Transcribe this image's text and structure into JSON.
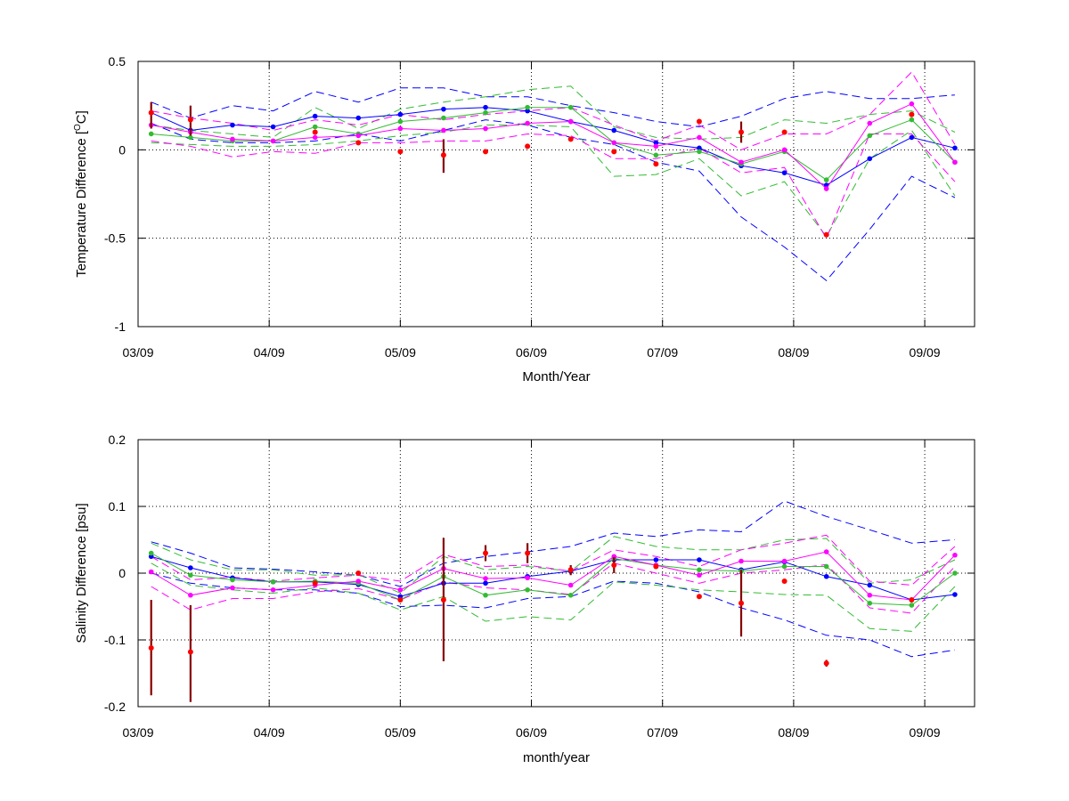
{
  "chart_data": [
    {
      "type": "line",
      "xlabel": "Month/Year",
      "ylabel": "Temperature Difference [",
      "ylabel_sup": "O",
      "ylabel_unit": "C]",
      "xlim": [
        0.0,
        6.38
      ],
      "ylim": [
        -1,
        0.5
      ],
      "x_ticks": [
        0,
        1,
        2,
        3,
        4,
        5,
        6
      ],
      "x_tick_labels": [
        "03/09",
        "04/09",
        "05/09",
        "06/09",
        "07/09",
        "08/09",
        "09/09"
      ],
      "y_ticks": [
        0.5,
        0,
        -0.5,
        -1
      ],
      "y_tick_labels": [
        "0.5",
        "0",
        "-0.5",
        "-1"
      ],
      "grid": true,
      "series": [
        {
          "color": "#0000ff",
          "style": "solid",
          "marker": true,
          "x": [
            0.1,
            0.4,
            0.72,
            1.03,
            1.35,
            1.68,
            2.0,
            2.33,
            2.65,
            2.97,
            3.3,
            3.63,
            3.95,
            4.28,
            4.6,
            4.93,
            5.25,
            5.58,
            5.9,
            6.23
          ],
          "y": [
            0.21,
            0.11,
            0.14,
            0.13,
            0.19,
            0.18,
            0.2,
            0.23,
            0.24,
            0.22,
            0.16,
            0.11,
            0.04,
            0.01,
            -0.09,
            -0.13,
            -0.2,
            -0.05,
            0.07,
            0.01
          ]
        },
        {
          "color": "#0000ff",
          "style": "dashed",
          "marker": false,
          "x": [
            0.1,
            0.4,
            0.72,
            1.03,
            1.35,
            1.68,
            2.0,
            2.33,
            2.65,
            2.97,
            3.3,
            3.63,
            3.95,
            4.28,
            4.6,
            4.93,
            5.25,
            5.58,
            5.9,
            6.23
          ],
          "y": [
            0.27,
            0.18,
            0.25,
            0.22,
            0.33,
            0.27,
            0.35,
            0.35,
            0.3,
            0.3,
            0.25,
            0.21,
            0.16,
            0.13,
            0.19,
            0.29,
            0.33,
            0.29,
            0.29,
            0.31
          ]
        },
        {
          "color": "#0000ff",
          "style": "dashed",
          "marker": false,
          "x": [
            0.1,
            0.4,
            0.72,
            1.03,
            1.35,
            1.68,
            2.0,
            2.33,
            2.65,
            2.97,
            3.3,
            3.63,
            3.95,
            4.28,
            4.6,
            4.93,
            5.25,
            5.58,
            5.9,
            6.23
          ],
          "y": [
            0.15,
            0.06,
            0.04,
            0.04,
            0.05,
            0.09,
            0.05,
            0.11,
            0.17,
            0.14,
            0.07,
            0.03,
            -0.07,
            -0.12,
            -0.38,
            -0.55,
            -0.74,
            -0.45,
            -0.15,
            -0.27
          ]
        },
        {
          "color": "#33bb33",
          "style": "solid",
          "marker": true,
          "x": [
            0.1,
            0.4,
            0.72,
            1.03,
            1.35,
            1.68,
            2.0,
            2.33,
            2.65,
            2.97,
            3.3,
            3.63,
            3.95,
            4.28,
            4.6,
            4.93,
            5.25,
            5.58,
            5.9,
            6.23
          ],
          "y": [
            0.09,
            0.07,
            0.05,
            0.05,
            0.13,
            0.09,
            0.16,
            0.18,
            0.21,
            0.24,
            0.24,
            0.04,
            -0.03,
            -0.01,
            -0.08,
            -0.01,
            -0.17,
            0.08,
            0.17,
            -0.07
          ]
        },
        {
          "color": "#33bb33",
          "style": "dashed",
          "marker": false,
          "x": [
            0.1,
            0.4,
            0.72,
            1.03,
            1.35,
            1.68,
            2.0,
            2.33,
            2.65,
            2.97,
            3.3,
            3.63,
            3.95,
            4.28,
            4.6,
            4.93,
            5.25,
            5.58,
            5.9,
            6.23
          ],
          "y": [
            0.14,
            0.11,
            0.09,
            0.07,
            0.24,
            0.12,
            0.23,
            0.27,
            0.3,
            0.34,
            0.36,
            0.13,
            0.07,
            0.06,
            0.07,
            0.17,
            0.15,
            0.2,
            0.22,
            0.1
          ]
        },
        {
          "color": "#33bb33",
          "style": "dashed",
          "marker": false,
          "x": [
            0.1,
            0.4,
            0.72,
            1.03,
            1.35,
            1.68,
            2.0,
            2.33,
            2.65,
            2.97,
            3.3,
            3.63,
            3.95,
            4.28,
            4.6,
            4.93,
            5.25,
            5.58,
            5.9,
            6.23
          ],
          "y": [
            0.04,
            0.03,
            0.02,
            0.02,
            0.03,
            0.05,
            0.08,
            0.1,
            0.14,
            0.14,
            0.13,
            -0.15,
            -0.14,
            -0.05,
            -0.26,
            -0.18,
            -0.49,
            -0.05,
            0.11,
            -0.26
          ]
        },
        {
          "color": "#ff00ff",
          "style": "solid",
          "marker": true,
          "x": [
            0.1,
            0.4,
            0.72,
            1.03,
            1.35,
            1.68,
            2.0,
            2.33,
            2.65,
            2.97,
            3.3,
            3.63,
            3.95,
            4.28,
            4.6,
            4.93,
            5.25,
            5.58,
            5.9,
            6.23
          ],
          "y": [
            0.14,
            0.1,
            0.06,
            0.05,
            0.07,
            0.08,
            0.12,
            0.11,
            0.12,
            0.15,
            0.16,
            0.04,
            0.02,
            0.07,
            -0.07,
            0.0,
            -0.22,
            0.15,
            0.26,
            -0.07
          ]
        },
        {
          "color": "#ff00ff",
          "style": "dashed",
          "marker": false,
          "x": [
            0.1,
            0.4,
            0.72,
            1.03,
            1.35,
            1.68,
            2.0,
            2.33,
            2.65,
            2.97,
            3.3,
            3.63,
            3.95,
            4.28,
            4.6,
            4.93,
            5.25,
            5.58,
            5.9,
            6.23
          ],
          "y": [
            0.22,
            0.18,
            0.15,
            0.11,
            0.17,
            0.14,
            0.2,
            0.17,
            0.2,
            0.22,
            0.24,
            0.14,
            0.05,
            0.14,
            0.0,
            0.09,
            0.09,
            0.2,
            0.44,
            0.03
          ]
        },
        {
          "color": "#ff00ff",
          "style": "dashed",
          "marker": false,
          "x": [
            0.1,
            0.4,
            0.72,
            1.03,
            1.35,
            1.68,
            2.0,
            2.33,
            2.65,
            2.97,
            3.3,
            3.63,
            3.95,
            4.28,
            4.6,
            4.93,
            5.25,
            5.58,
            5.9,
            6.23
          ],
          "y": [
            0.05,
            0.02,
            -0.04,
            -0.01,
            -0.02,
            0.04,
            0.04,
            0.05,
            0.05,
            0.09,
            0.08,
            -0.05,
            -0.05,
            0.01,
            -0.13,
            -0.1,
            -0.5,
            0.09,
            0.09,
            -0.18
          ]
        }
      ],
      "points": {
        "color": "#ff0000",
        "x": [
          0.1,
          0.4,
          1.35,
          1.68,
          2.0,
          2.33,
          2.65,
          2.97,
          3.3,
          3.63,
          3.95,
          4.28,
          4.6,
          4.93,
          5.25,
          5.9
        ],
        "y": [
          0.21,
          0.17,
          0.1,
          0.04,
          -0.01,
          -0.03,
          -0.01,
          0.02,
          0.06,
          -0.01,
          -0.08,
          0.16,
          0.1,
          0.1,
          -0.48,
          0.2
        ]
      },
      "error_bars": {
        "color": "#880000",
        "x": [
          0.1,
          0.4,
          2.33,
          4.6
        ],
        "low": [
          0.12,
          0.08,
          -0.13,
          0.04
        ],
        "high": [
          0.27,
          0.25,
          0.06,
          0.16
        ]
      }
    },
    {
      "type": "line",
      "xlabel": "month/year",
      "ylabel": "Salinity Difference [psu]",
      "xlim": [
        0.0,
        6.38
      ],
      "ylim": [
        -0.2,
        0.2
      ],
      "x_ticks": [
        0,
        1,
        2,
        3,
        4,
        5,
        6
      ],
      "x_tick_labels": [
        "03/09",
        "04/09",
        "05/09",
        "06/09",
        "07/09",
        "08/09",
        "09/09"
      ],
      "y_ticks": [
        0.2,
        0.1,
        0,
        -0.1,
        -0.2
      ],
      "y_tick_labels": [
        "0.2",
        "0.1",
        "0",
        "-0.1",
        "-0.2"
      ],
      "grid": true,
      "series": [
        {
          "color": "#0000ff",
          "style": "solid",
          "marker": true,
          "x": [
            0.1,
            0.4,
            0.72,
            1.03,
            1.35,
            1.68,
            2.0,
            2.33,
            2.65,
            2.97,
            3.3,
            3.63,
            3.95,
            4.28,
            4.6,
            4.93,
            5.25,
            5.58,
            5.9,
            6.23
          ],
          "y": [
            0.025,
            0.008,
            -0.007,
            -0.013,
            -0.013,
            -0.017,
            -0.035,
            -0.015,
            -0.015,
            -0.005,
            0.003,
            0.02,
            0.02,
            0.02,
            0.005,
            0.017,
            -0.005,
            -0.018,
            -0.04,
            -0.032
          ]
        },
        {
          "color": "#0000ff",
          "style": "dashed",
          "marker": false,
          "x": [
            0.1,
            0.4,
            0.72,
            1.03,
            1.35,
            1.68,
            2.0,
            2.33,
            2.65,
            2.97,
            3.3,
            3.63,
            3.95,
            4.28,
            4.6,
            4.93,
            5.25,
            5.58,
            5.9,
            6.23
          ],
          "y": [
            0.047,
            0.03,
            0.008,
            0.006,
            0.002,
            -0.003,
            -0.02,
            0.015,
            0.025,
            0.032,
            0.04,
            0.06,
            0.055,
            0.065,
            0.062,
            0.108,
            0.085,
            0.065,
            0.045,
            0.05
          ]
        },
        {
          "color": "#0000ff",
          "style": "dashed",
          "marker": false,
          "x": [
            0.1,
            0.4,
            0.72,
            1.03,
            1.35,
            1.68,
            2.0,
            2.33,
            2.65,
            2.97,
            3.3,
            3.63,
            3.95,
            4.28,
            4.6,
            4.93,
            5.25,
            5.58,
            5.9,
            6.23
          ],
          "y": [
            0.0,
            -0.015,
            -0.022,
            -0.025,
            -0.025,
            -0.03,
            -0.05,
            -0.048,
            -0.052,
            -0.038,
            -0.035,
            -0.012,
            -0.015,
            -0.028,
            -0.052,
            -0.07,
            -0.093,
            -0.1,
            -0.125,
            -0.115
          ]
        },
        {
          "color": "#33bb33",
          "style": "solid",
          "marker": true,
          "x": [
            0.1,
            0.4,
            0.72,
            1.03,
            1.35,
            1.68,
            2.0,
            2.33,
            2.65,
            2.97,
            3.3,
            3.63,
            3.95,
            4.28,
            4.6,
            4.93,
            5.25,
            5.58,
            5.9,
            6.23
          ],
          "y": [
            0.03,
            -0.003,
            -0.01,
            -0.013,
            -0.012,
            -0.015,
            -0.04,
            -0.005,
            -0.033,
            -0.025,
            -0.033,
            0.022,
            0.012,
            0.005,
            0.003,
            0.01,
            0.01,
            -0.045,
            -0.048,
            0.0
          ]
        },
        {
          "color": "#33bb33",
          "style": "dashed",
          "marker": false,
          "x": [
            0.1,
            0.4,
            0.72,
            1.03,
            1.35,
            1.68,
            2.0,
            2.33,
            2.65,
            2.97,
            3.3,
            3.63,
            3.95,
            4.28,
            4.6,
            4.93,
            5.25,
            5.58,
            5.9,
            6.23
          ],
          "y": [
            0.045,
            0.02,
            0.005,
            0.005,
            -0.003,
            -0.002,
            -0.03,
            0.025,
            0.005,
            0.01,
            0.003,
            0.055,
            0.04,
            0.035,
            0.035,
            0.05,
            0.052,
            -0.015,
            -0.01,
            0.02
          ]
        },
        {
          "color": "#33bb33",
          "style": "dashed",
          "marker": false,
          "x": [
            0.1,
            0.4,
            0.72,
            1.03,
            1.35,
            1.68,
            2.0,
            2.33,
            2.65,
            2.97,
            3.3,
            3.63,
            3.95,
            4.28,
            4.6,
            4.93,
            5.25,
            5.58,
            5.9,
            6.23
          ],
          "y": [
            0.015,
            -0.018,
            -0.025,
            -0.03,
            -0.022,
            -0.03,
            -0.055,
            -0.035,
            -0.072,
            -0.065,
            -0.07,
            -0.013,
            -0.018,
            -0.025,
            -0.028,
            -0.032,
            -0.033,
            -0.083,
            -0.087,
            -0.02
          ]
        },
        {
          "color": "#ff00ff",
          "style": "solid",
          "marker": true,
          "x": [
            0.1,
            0.4,
            0.72,
            1.03,
            1.35,
            1.68,
            2.0,
            2.33,
            2.65,
            2.97,
            3.3,
            3.63,
            3.95,
            4.28,
            4.6,
            4.93,
            5.25,
            5.58,
            5.9,
            6.23
          ],
          "y": [
            0.002,
            -0.033,
            -0.022,
            -0.025,
            -0.018,
            -0.012,
            -0.025,
            0.007,
            -0.008,
            -0.007,
            -0.018,
            0.025,
            0.012,
            -0.003,
            0.018,
            0.018,
            0.032,
            -0.033,
            -0.04,
            0.027
          ]
        },
        {
          "color": "#ff00ff",
          "style": "dashed",
          "marker": false,
          "x": [
            0.1,
            0.4,
            0.72,
            1.03,
            1.35,
            1.68,
            2.0,
            2.33,
            2.65,
            2.97,
            3.3,
            3.63,
            3.95,
            4.28,
            4.6,
            4.93,
            5.25,
            5.58,
            5.9,
            6.23
          ],
          "y": [
            0.025,
            -0.01,
            -0.006,
            -0.012,
            -0.007,
            -0.003,
            -0.012,
            0.028,
            0.01,
            0.012,
            0.003,
            0.035,
            0.025,
            0.01,
            0.035,
            0.045,
            0.057,
            -0.012,
            -0.018,
            0.04
          ]
        },
        {
          "color": "#ff00ff",
          "style": "dashed",
          "marker": false,
          "x": [
            0.1,
            0.4,
            0.72,
            1.03,
            1.35,
            1.68,
            2.0,
            2.33,
            2.65,
            2.97,
            3.3,
            3.63,
            3.95,
            4.28,
            4.6,
            4.93,
            5.25,
            5.58,
            5.9,
            6.23
          ],
          "y": [
            -0.02,
            -0.055,
            -0.038,
            -0.038,
            -0.028,
            -0.023,
            -0.04,
            -0.013,
            -0.022,
            -0.025,
            -0.032,
            0.015,
            0.0,
            -0.015,
            0.0,
            0.005,
            0.013,
            -0.052,
            -0.06,
            0.01
          ]
        }
      ],
      "points": {
        "color": "#ff0000",
        "x": [
          0.1,
          0.4,
          1.35,
          1.68,
          2.0,
          2.33,
          2.65,
          2.97,
          3.3,
          3.63,
          3.95,
          4.28,
          4.6,
          4.93,
          5.25,
          5.9
        ],
        "y": [
          -0.112,
          -0.118,
          -0.015,
          0.0,
          -0.04,
          -0.04,
          0.03,
          0.03,
          0.005,
          0.012,
          0.01,
          -0.035,
          -0.045,
          -0.012,
          -0.135,
          -0.04
        ]
      },
      "error_bars": {
        "color": "#880000",
        "x": [
          0.1,
          0.4,
          2.33,
          2.65,
          2.97,
          3.3,
          3.63,
          4.6,
          5.25
        ],
        "low": [
          -0.183,
          -0.193,
          -0.132,
          0.018,
          0.015,
          -0.003,
          0.0,
          -0.095,
          -0.14
        ],
        "high": [
          -0.04,
          -0.048,
          0.053,
          0.042,
          0.045,
          0.012,
          0.024,
          0.005,
          -0.13
        ]
      }
    }
  ]
}
